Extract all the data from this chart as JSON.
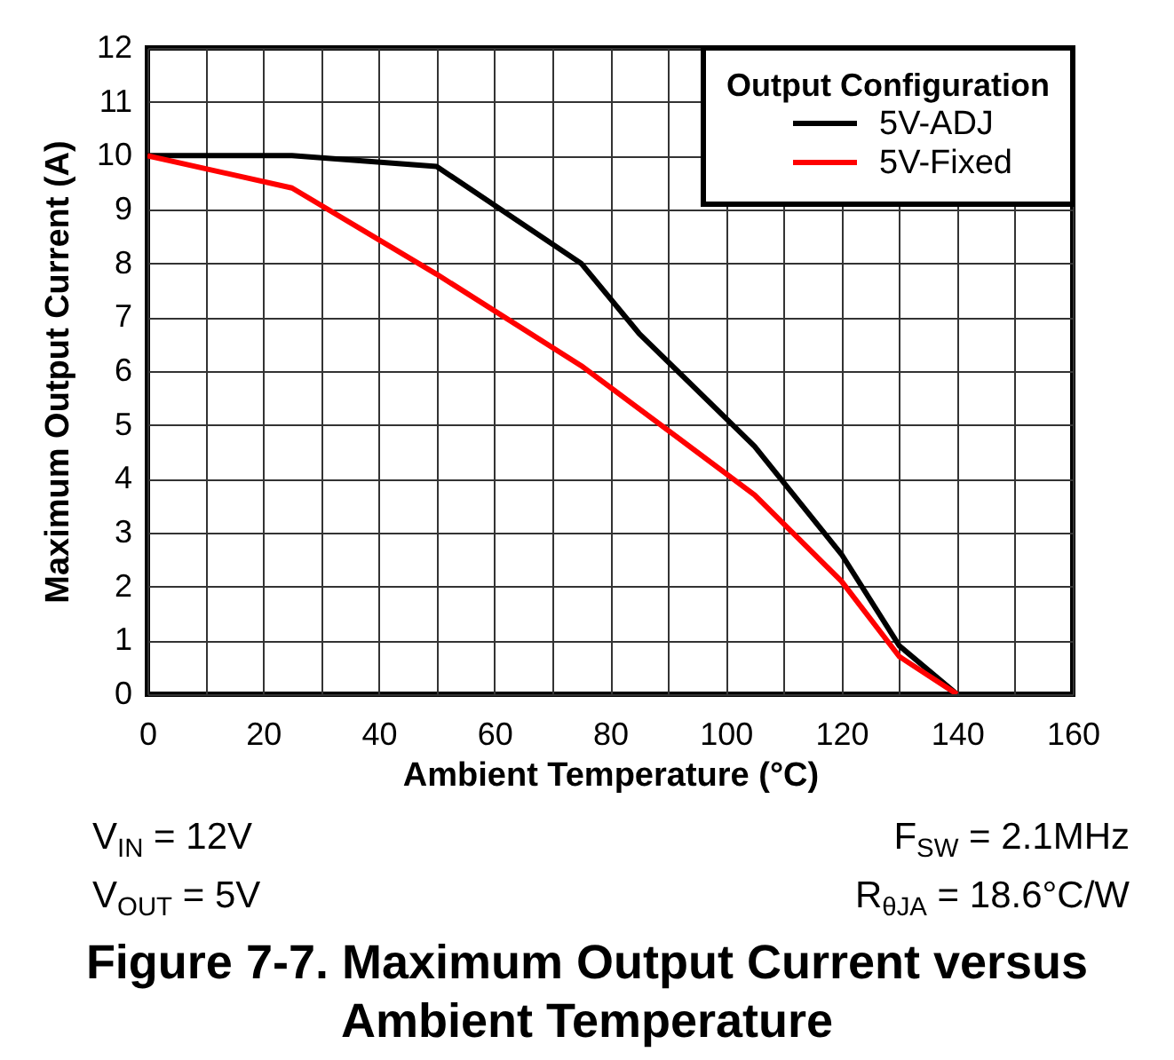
{
  "chart_data": {
    "type": "line",
    "title": "Figure 7-7. Maximum Output Current versus Ambient Temperature",
    "xlabel": "Ambient Temperature (°C)",
    "ylabel": "Maximum Output Current (A)",
    "legend_title": "Output Configuration",
    "annotations": [
      "V$_{IN}$ = 12V",
      "F$_{SW}$ = 2.1MHz",
      "V$_{OUT}$ = 5V",
      "R$_{θJA}$ = 18.6°C/W"
    ],
    "x": [
      0,
      25,
      50,
      75,
      85,
      105,
      120,
      130,
      140
    ],
    "series": [
      {
        "name": "5V-ADJ",
        "color": "#000000",
        "values": [
          10,
          10,
          9.8,
          8,
          6.7,
          4.6,
          2.6,
          0.9,
          0
        ]
      },
      {
        "name": "5V-Fixed",
        "color": "#ff0000",
        "x": [
          0,
          25,
          50,
          75,
          105,
          120,
          130,
          140
        ],
        "values": [
          10,
          9.4,
          7.8,
          6.1,
          3.7,
          2.1,
          0.7,
          0
        ]
      }
    ],
    "xlim": [
      0,
      160
    ],
    "ylim": [
      0,
      12
    ],
    "xticks": [
      0,
      {
        "value": 10,
        "label": null
      },
      20,
      {
        "value": 30,
        "label": null
      },
      40,
      {
        "value": 50,
        "label": null
      },
      60,
      {
        "value": 70,
        "label": null
      },
      80,
      {
        "value": 90,
        "label": null
      },
      100,
      {
        "value": 110,
        "label": null
      },
      120,
      {
        "value": 130,
        "label": null
      },
      140,
      {
        "value": 150,
        "label": null
      },
      160
    ],
    "yticks": [
      0,
      1,
      2,
      3,
      4,
      5,
      6,
      7,
      8,
      9,
      10,
      11,
      12
    ],
    "grid": true,
    "legend": "top right"
  }
}
